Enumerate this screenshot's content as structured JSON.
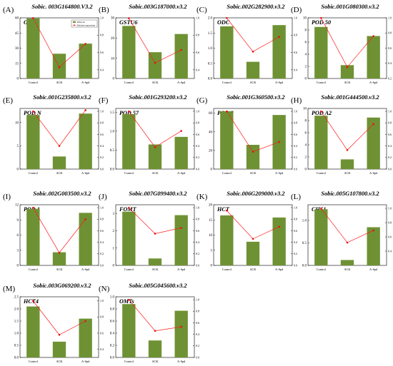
{
  "colors": {
    "bar": "#6e9233",
    "line": "#ff1a1a",
    "point": "#e81010",
    "axis": "#000000"
  },
  "legend": {
    "bar_label": "RNA-Se",
    "line_label": "Relative expression"
  },
  "chart_data": [
    {
      "type": "bar",
      "panel": "(A)",
      "title": "Sobic. 003G164800.V3.2",
      "gene": "GST4",
      "categories": [
        "Control",
        "ACK",
        "A-Spd"
      ],
      "series": [
        {
          "values": [
            59.5,
            24.5,
            34.5
          ],
          "axis": "left"
        },
        {
          "values": [
            0.998,
            0.43,
            0.7
          ],
          "axis": "right"
        }
      ],
      "ylim": [
        0,
        60
      ],
      "yticks": [
        "0",
        "15",
        "30",
        "45",
        "60"
      ],
      "y2lim": [
        0.3,
        1.0
      ],
      "y2ticks": [
        "0.4",
        "0.6",
        "0.8",
        "1.0"
      ],
      "legend": "top-right"
    },
    {
      "type": "bar",
      "panel": "(B)",
      "title": "Sobic.003G187000.v3.2",
      "gene": "GSTU6",
      "categories": [
        "Control",
        "ACK",
        "A-Spd"
      ],
      "series": [
        {
          "values": [
            26,
            13,
            22
          ],
          "axis": "left"
        },
        {
          "values": [
            0.995,
            0.48,
            0.63
          ],
          "axis": "right"
        }
      ],
      "ylim": [
        0,
        30
      ],
      "yticks": [
        "0",
        "10",
        "20",
        "30"
      ],
      "y2lim": [
        0.3,
        1.0
      ],
      "y2ticks": [
        "0.4",
        "0.6",
        "0.8",
        "1.0"
      ]
    },
    {
      "type": "bar",
      "panel": "(C)",
      "title": "Sobic.002G282900.v3.2",
      "gene": "ODC",
      "categories": [
        "Control",
        "ACK",
        "A-Spd"
      ],
      "series": [
        {
          "values": [
            1.72,
            0.55,
            1.76
          ],
          "axis": "left"
        },
        {
          "values": [
            0.998,
            0.61,
            0.78
          ],
          "axis": "right"
        }
      ],
      "ylim": [
        0,
        2.0
      ],
      "yticks": [
        "0.0",
        "0.5",
        "1.0",
        "1.5",
        "2.0"
      ],
      "y2lim": [
        0.3,
        1.0
      ],
      "y2ticks": [
        "0.4",
        "0.6",
        "0.8",
        "1.0"
      ]
    },
    {
      "type": "bar",
      "panel": "(D)",
      "title": "Sobic.001G080300.v3.2",
      "gene": "POD 50",
      "categories": [
        "Control",
        "ACK",
        "A-Spd"
      ],
      "series": [
        {
          "values": [
            8.5,
            2.2,
            7.0
          ],
          "axis": "left"
        },
        {
          "values": [
            0.998,
            0.35,
            0.76
          ],
          "axis": "right"
        }
      ],
      "ylim": [
        0,
        10
      ],
      "yticks": [
        "0",
        "2",
        "4",
        "6",
        "8",
        "10"
      ],
      "y2lim": [
        0.2,
        1.0
      ],
      "y2ticks": [
        "0.2",
        "0.4",
        "0.6",
        "0.8",
        "1.0"
      ]
    },
    {
      "type": "bar",
      "panel": "(E)",
      "title": "Sobic.001G235800.v3.2",
      "gene": "POD N",
      "categories": [
        "Control",
        "ACK",
        "A-Spd"
      ],
      "series": [
        {
          "values": [
            11.6,
            2.7,
            11.9
          ],
          "axis": "left"
        },
        {
          "values": [
            0.998,
            0.4,
            1.02
          ],
          "axis": "right"
        }
      ],
      "ylim": [
        0,
        13
      ],
      "yticks": [
        "0",
        "5",
        "10"
      ],
      "y2lim": [
        0.0,
        1.05
      ],
      "y2ticks": [
        "0.0",
        "0.2",
        "0.4",
        "0.6",
        "0.8",
        "1.0"
      ]
    },
    {
      "type": "bar",
      "panel": "(F)",
      "title": "Sobic.001G293200.v3.2",
      "gene": "POD 57",
      "categories": [
        "Control",
        "ACK",
        "A-Spd"
      ],
      "series": [
        {
          "values": [
            1.45,
            0.65,
            0.85
          ],
          "axis": "left"
        },
        {
          "values": [
            0.998,
            0.38,
            0.66
          ],
          "axis": "right"
        }
      ],
      "ylim": [
        0,
        1.6
      ],
      "yticks": [
        "0.0",
        "0.5",
        "1.0",
        "1.5"
      ],
      "y2lim": [
        0.0,
        1.05
      ],
      "y2ticks": [
        "0.0",
        "0.2",
        "0.4",
        "0.6",
        "0.8",
        "1.0"
      ]
    },
    {
      "type": "bar",
      "panel": "(G)",
      "title": "Sobic.001G360500.v3.2",
      "gene": "POD 2",
      "categories": [
        "Control",
        "ACK",
        "A-Spd"
      ],
      "series": [
        {
          "values": [
            62,
            26,
            58
          ],
          "axis": "left"
        },
        {
          "values": [
            0.998,
            0.3,
            0.47
          ],
          "axis": "right"
        }
      ],
      "ylim": [
        0,
        65
      ],
      "yticks": [
        "0",
        "20",
        "40",
        "60"
      ],
      "y2lim": [
        0.0,
        1.05
      ],
      "y2ticks": [
        "0.0",
        "0.2",
        "0.4",
        "0.6",
        "0.8",
        "1.0"
      ]
    },
    {
      "type": "bar",
      "panel": "(H)",
      "title": "Sobic.001G444500.v3.2",
      "gene": "POD A2",
      "categories": [
        "Control",
        "ACK",
        "A-Spd"
      ],
      "series": [
        {
          "values": [
            8.8,
            1.6,
            8.5
          ],
          "axis": "left"
        },
        {
          "values": [
            0.998,
            0.33,
            0.78
          ],
          "axis": "right"
        }
      ],
      "ylim": [
        0,
        10
      ],
      "yticks": [
        "0",
        "2",
        "4",
        "6",
        "8",
        "10"
      ],
      "y2lim": [
        0.0,
        1.05
      ],
      "y2ticks": [
        "0.0",
        "0.2",
        "0.4",
        "0.6",
        "0.8",
        "1.0"
      ]
    },
    {
      "type": "bar",
      "panel": "(I)",
      "title": "Sobic.002G003500.v3.2",
      "gene": "POD 1",
      "categories": [
        "Control",
        "ACK",
        "A-Spd"
      ],
      "series": [
        {
          "values": [
            11.2,
            2.6,
            10.4
          ],
          "axis": "left"
        },
        {
          "values": [
            0.998,
            0.22,
            0.8
          ],
          "axis": "right"
        }
      ],
      "ylim": [
        0,
        12
      ],
      "yticks": [
        "0",
        "3",
        "6",
        "9",
        "12"
      ],
      "y2lim": [
        0.0,
        1.05
      ],
      "y2ticks": [
        "0.0",
        "0.2",
        "0.4",
        "0.6",
        "0.8",
        "1.0"
      ]
    },
    {
      "type": "bar",
      "panel": "(J)",
      "title": "Sobic.007G099400.v3.2",
      "gene": "FOMT",
      "categories": [
        "Control",
        "ACK",
        "A-Spd"
      ],
      "series": [
        {
          "values": [
            3.1,
            0.4,
            2.9
          ],
          "axis": "left"
        },
        {
          "values": [
            0.998,
            0.55,
            0.65
          ],
          "axis": "right"
        }
      ],
      "ylim": [
        0,
        3.5
      ],
      "yticks": [
        "0",
        "1",
        "2",
        "3"
      ],
      "y2lim": [
        0.0,
        1.05
      ],
      "y2ticks": [
        "0.0",
        "0.2",
        "0.4",
        "0.6",
        "0.8",
        "1.0"
      ]
    },
    {
      "type": "bar",
      "panel": "(K)",
      "title": "Sobic.006G209000.v3.2",
      "gene": "HCT",
      "categories": [
        "Control",
        "ACK",
        "A-Spd"
      ],
      "series": [
        {
          "values": [
            16.5,
            7.8,
            15.8
          ],
          "axis": "left"
        },
        {
          "values": [
            0.95,
            0.46,
            0.67
          ],
          "axis": "right"
        }
      ],
      "ylim": [
        0,
        20
      ],
      "yticks": [
        "0",
        "5",
        "10",
        "15",
        "20"
      ],
      "y2lim": [
        0.0,
        1.05
      ],
      "y2ticks": [
        "0.0",
        "0.2",
        "0.4",
        "0.6",
        "0.8",
        "1.0"
      ]
    },
    {
      "type": "bar",
      "panel": "(L)",
      "title": "Sobic.005G107800.v3.2",
      "gene": "CHS1",
      "categories": [
        "Control",
        "ACK",
        "A-Spd"
      ],
      "series": [
        {
          "values": [
            1.25,
            0.12,
            0.85
          ],
          "axis": "left"
        },
        {
          "values": [
            0.998,
            0.52,
            0.69
          ],
          "axis": "right"
        }
      ],
      "ylim": [
        0,
        1.35
      ],
      "yticks": [
        "0.0",
        "0.5",
        "1.0"
      ],
      "y2lim": [
        0.2,
        1.05
      ],
      "y2ticks": [
        "0.4",
        "0.6",
        "0.8",
        "1.0"
      ]
    },
    {
      "type": "bar",
      "panel": "(M)",
      "title": "Sobic.003G069200.v3.2",
      "gene": "HCT4",
      "categories": [
        "Control",
        "ACK",
        "A-Spd"
      ],
      "series": [
        {
          "values": [
            2.1,
            0.65,
            1.6
          ],
          "axis": "left"
        },
        {
          "values": [
            0.998,
            0.58,
            0.75
          ],
          "axis": "right"
        }
      ],
      "ylim": [
        0,
        2.5
      ],
      "yticks": [
        "0.0",
        "0.5",
        "1.0",
        "1.5",
        "2.0",
        "2.5"
      ],
      "y2lim": [
        0.3,
        1.05
      ],
      "y2ticks": [
        "0.4",
        "0.6",
        "0.8",
        "1.0"
      ]
    },
    {
      "type": "bar",
      "panel": "(N)",
      "title": "Sobic.005G045600.v3.2",
      "gene": "OMTs",
      "categories": [
        "Control",
        "ACK",
        "A-Spd"
      ],
      "series": [
        {
          "values": [
            0.88,
            0.28,
            0.77
          ],
          "axis": "left"
        },
        {
          "values": [
            0.998,
            0.46,
            0.53
          ],
          "axis": "right"
        }
      ],
      "ylim": [
        0,
        1.0
      ],
      "yticks": [
        "0.0",
        "0.2",
        "0.4",
        "0.6",
        "0.8",
        "1.0"
      ],
      "y2lim": [
        0.0,
        1.05
      ],
      "y2ticks": [
        "0.0",
        "0.2",
        "0.4",
        "0.6",
        "0.8",
        "1.0"
      ]
    }
  ]
}
